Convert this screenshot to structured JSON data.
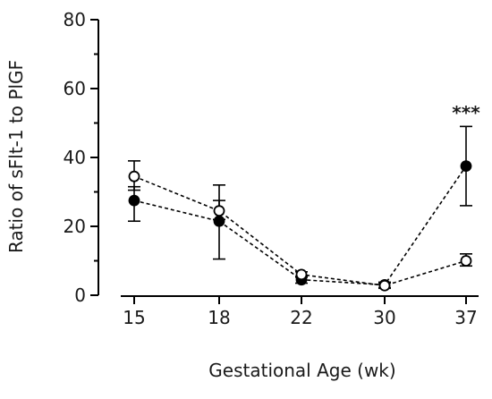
{
  "chart_data": {
    "type": "line",
    "categories": [
      "15",
      "18",
      "22",
      "30",
      "37"
    ],
    "xlabel": "Gestational Age (wk)",
    "ylabel": "Ratio of sFlt-1 to PlGF",
    "ylim": [
      0,
      80
    ],
    "yticks": [
      "0",
      "20",
      "40",
      "60",
      "80"
    ],
    "grid": false,
    "series": [
      {
        "marker": "filled-circle",
        "fill": "#000000",
        "values": [
          27.5,
          21.5,
          4.5,
          3.0,
          37.5
        ],
        "err_low": [
          21.5,
          10.5,
          3.5,
          2.2,
          26.0
        ],
        "err_high": [
          31.5,
          32.0,
          5.5,
          3.8,
          49.0
        ]
      },
      {
        "marker": "open-circle",
        "fill": "#ffffff",
        "values": [
          34.5,
          24.5,
          6.0,
          2.8,
          10.0
        ],
        "err_low": [
          30.5,
          22.0,
          5.2,
          2.0,
          8.5
        ],
        "err_high": [
          39.0,
          27.5,
          6.8,
          3.6,
          12.0
        ]
      }
    ],
    "annotations": [
      {
        "text": "***",
        "category": "37"
      }
    ]
  }
}
